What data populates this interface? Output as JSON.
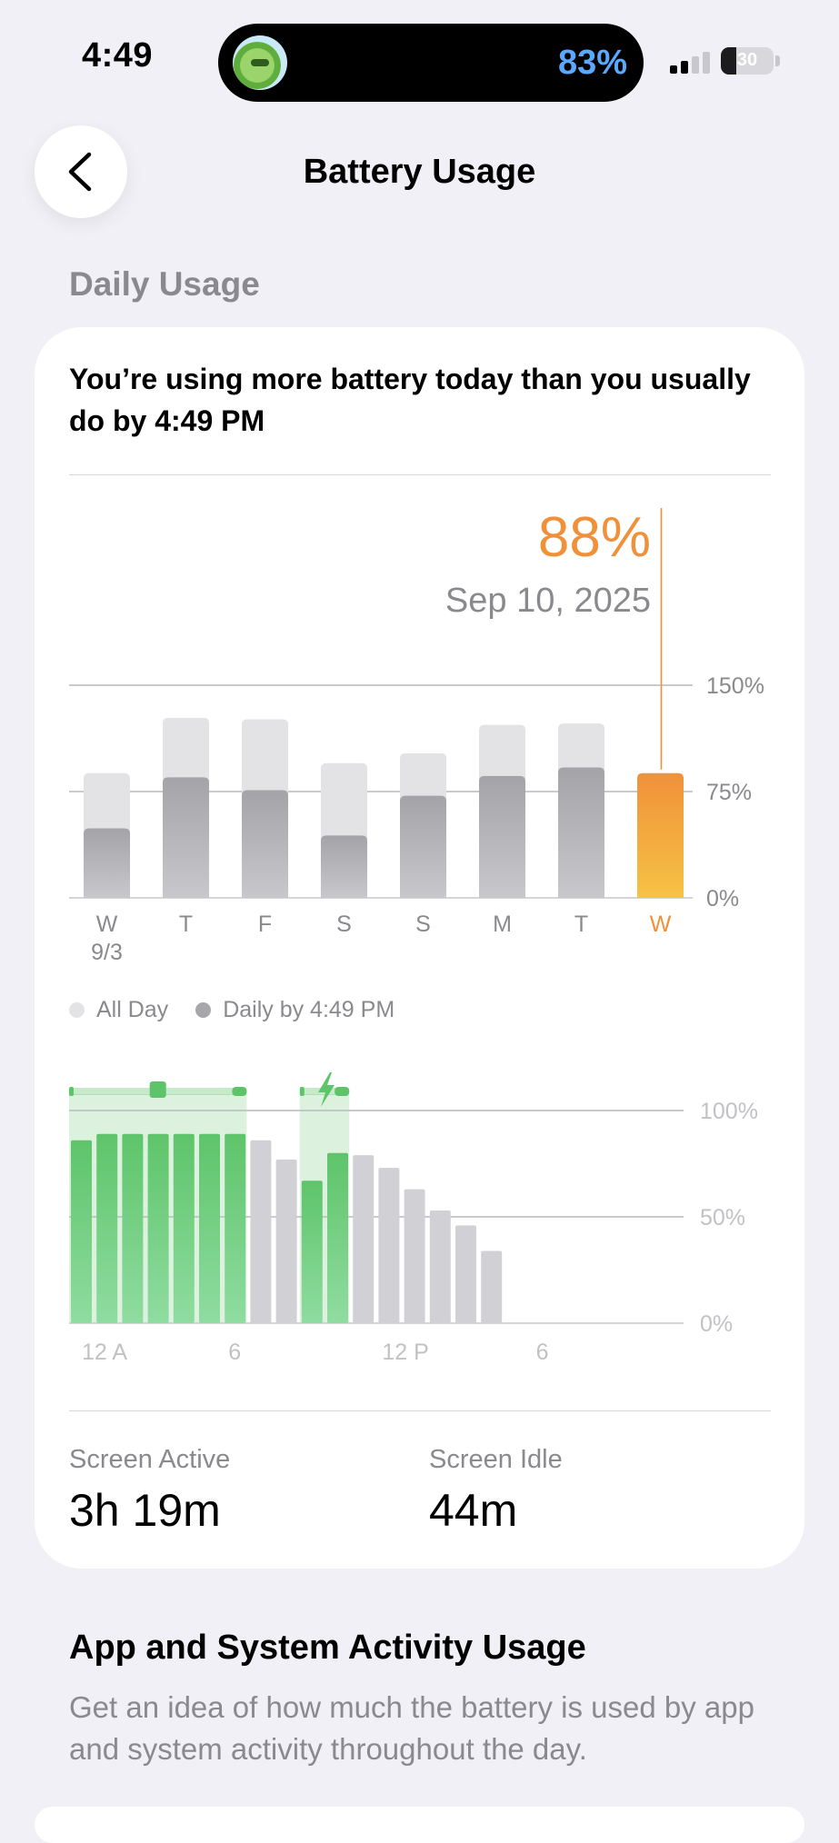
{
  "status_bar": {
    "time": "4:49",
    "island_percent": "83%",
    "battery_level": "30",
    "battery_fraction": 0.3,
    "signal_bars_active": 2
  },
  "nav": {
    "title": "Battery Usage",
    "back_icon": "chevron-left-icon"
  },
  "daily_usage": {
    "section_header": "Daily Usage",
    "headline": "You’re using more battery today than you usually do by 4:49 PM",
    "selected_value": "88%",
    "selected_date": "Sep 10, 2025",
    "legend": {
      "all_day": "All Day",
      "by_time": "Daily by 4:49 PM"
    },
    "stats": {
      "active_label": "Screen Active",
      "active_value": "3h 19m",
      "idle_label": "Screen Idle",
      "idle_value": "44m"
    }
  },
  "colors": {
    "accent": "#f0913a",
    "bar_light": "#e3e3e5",
    "bar_dark": "#a7a7ab",
    "green": "#5ec46a",
    "muted_text": "#8a8a8e"
  },
  "chart_data": [
    {
      "type": "bar",
      "categories": [
        "W",
        "T",
        "F",
        "S",
        "S",
        "M",
        "T",
        "W"
      ],
      "category_sublabels": [
        "9/3",
        "",
        "",
        "",
        "",
        "",
        "",
        ""
      ],
      "series": [
        {
          "name": "All Day",
          "values": [
            88,
            127,
            126,
            95,
            102,
            122,
            123,
            88
          ]
        },
        {
          "name": "Daily by 4:49 PM",
          "values": [
            49,
            85,
            76,
            44,
            72,
            86,
            92,
            88
          ]
        }
      ],
      "y_ticks": [
        "0%",
        "75%",
        "150%"
      ],
      "ylim": [
        0,
        150
      ],
      "highlight_index": 7
    },
    {
      "type": "bar",
      "x_ticks": [
        "12 A",
        "6",
        "12 P",
        "6"
      ],
      "y_ticks": [
        "0%",
        "50%",
        "100%"
      ],
      "ylim": [
        0,
        100
      ],
      "hourly_levels": [
        86,
        89,
        89,
        89,
        89,
        89,
        89,
        86,
        77,
        67,
        80,
        79,
        73,
        63,
        53,
        46,
        34
      ],
      "charging_hours": [
        0,
        1,
        2,
        3,
        4,
        5,
        6,
        9,
        10
      ],
      "charging_segments": [
        [
          0,
          7
        ],
        [
          9,
          11
        ]
      ]
    }
  ],
  "app_activity": {
    "title": "App and System Activity Usage",
    "description": "Get an idea of how much the battery is used by app and system activity throughout the day."
  }
}
